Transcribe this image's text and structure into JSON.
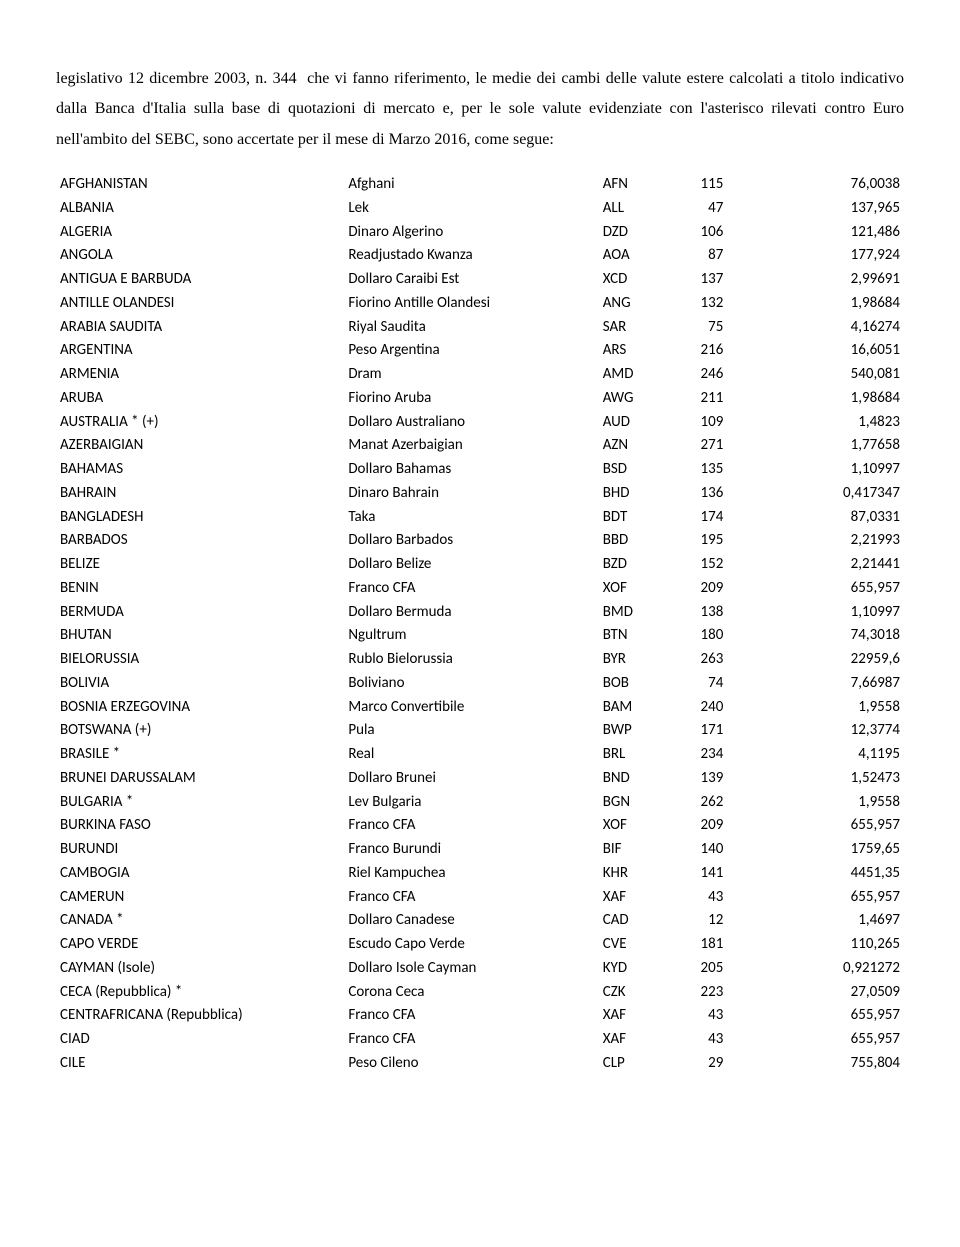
{
  "intro": {
    "line1_prefix": "legislativo 12 dicembre 2003, n. 344",
    "line1_rest": "che vi fanno riferimento, le medie dei cambi delle valute estere calcolati a titolo indicativo dalla Banca d'Italia sulla base di quotazioni di mercato e, per le sole valute evidenziate con l'asterisco rilevati contro Euro nell'ambito del SEBC, sono accertate per il mese di Marzo 2016,  come segue:"
  },
  "rows": [
    {
      "country": "AFGHANISTAN",
      "currency": "Afghani",
      "code": "AFN",
      "n1": "115",
      "n2": "76,0038"
    },
    {
      "country": "ALBANIA",
      "currency": "Lek",
      "code": "ALL",
      "n1": "47",
      "n2": "137,965"
    },
    {
      "country": "ALGERIA",
      "currency": "Dinaro Algerino",
      "code": "DZD",
      "n1": "106",
      "n2": "121,486"
    },
    {
      "country": "ANGOLA",
      "currency": "Readjustado Kwanza",
      "code": "AOA",
      "n1": "87",
      "n2": "177,924"
    },
    {
      "country": "ANTIGUA E BARBUDA",
      "currency": "Dollaro Caraibi Est",
      "code": "XCD",
      "n1": "137",
      "n2": "2,99691"
    },
    {
      "country": "ANTILLE OLANDESI",
      "currency": "Fiorino Antille Olandesi",
      "code": "ANG",
      "n1": "132",
      "n2": "1,98684"
    },
    {
      "country": "ARABIA SAUDITA",
      "currency": "Riyal Saudita",
      "code": "SAR",
      "n1": "75",
      "n2": "4,16274"
    },
    {
      "country": "ARGENTINA",
      "currency": "Peso Argentina",
      "code": "ARS",
      "n1": "216",
      "n2": "16,6051"
    },
    {
      "country": "ARMENIA",
      "currency": "Dram",
      "code": "AMD",
      "n1": "246",
      "n2": "540,081"
    },
    {
      "country": "ARUBA",
      "currency": "Fiorino Aruba",
      "code": "AWG",
      "n1": "211",
      "n2": "1,98684"
    },
    {
      "country": "AUSTRALIA * (+)",
      "currency": "Dollaro Australiano",
      "code": "AUD",
      "n1": "109",
      "n2": "1,4823"
    },
    {
      "country": "AZERBAIGIAN",
      "currency": "Manat Azerbaigian",
      "code": "AZN",
      "n1": "271",
      "n2": "1,77658"
    },
    {
      "country": "BAHAMAS",
      "currency": "Dollaro Bahamas",
      "code": "BSD",
      "n1": "135",
      "n2": "1,10997"
    },
    {
      "country": "BAHRAIN",
      "currency": "Dinaro Bahrain",
      "code": "BHD",
      "n1": "136",
      "n2": "0,417347"
    },
    {
      "country": "BANGLADESH",
      "currency": "Taka",
      "code": "BDT",
      "n1": "174",
      "n2": "87,0331"
    },
    {
      "country": "BARBADOS",
      "currency": "Dollaro Barbados",
      "code": "BBD",
      "n1": "195",
      "n2": "2,21993"
    },
    {
      "country": "BELIZE",
      "currency": "Dollaro Belize",
      "code": "BZD",
      "n1": "152",
      "n2": "2,21441"
    },
    {
      "country": "BENIN",
      "currency": "Franco CFA",
      "code": "XOF",
      "n1": "209",
      "n2": "655,957"
    },
    {
      "country": "BERMUDA",
      "currency": "Dollaro Bermuda",
      "code": "BMD",
      "n1": "138",
      "n2": "1,10997"
    },
    {
      "country": "BHUTAN",
      "currency": "Ngultrum",
      "code": "BTN",
      "n1": "180",
      "n2": "74,3018"
    },
    {
      "country": "BIELORUSSIA",
      "currency": "Rublo Bielorussia",
      "code": "BYR",
      "n1": "263",
      "n2": "22959,6"
    },
    {
      "country": "BOLIVIA",
      "currency": "Boliviano",
      "code": "BOB",
      "n1": "74",
      "n2": "7,66987"
    },
    {
      "country": "BOSNIA ERZEGOVINA",
      "currency": "Marco Convertibile",
      "code": "BAM",
      "n1": "240",
      "n2": "1,9558"
    },
    {
      "country": "BOTSWANA (+)",
      "currency": "Pula",
      "code": "BWP",
      "n1": "171",
      "n2": "12,3774"
    },
    {
      "country": "BRASILE *",
      "currency": "Real",
      "code": "BRL",
      "n1": "234",
      "n2": "4,1195"
    },
    {
      "country": "BRUNEI DARUSSALAM",
      "currency": "Dollaro Brunei",
      "code": "BND",
      "n1": "139",
      "n2": "1,52473"
    },
    {
      "country": "BULGARIA *",
      "currency": "Lev Bulgaria",
      "code": "BGN",
      "n1": "262",
      "n2": "1,9558"
    },
    {
      "country": "BURKINA FASO",
      "currency": "Franco CFA",
      "code": "XOF",
      "n1": "209",
      "n2": "655,957"
    },
    {
      "country": "BURUNDI",
      "currency": "Franco Burundi",
      "code": "BIF",
      "n1": "140",
      "n2": "1759,65"
    },
    {
      "country": "CAMBOGIA",
      "currency": "Riel Kampuchea",
      "code": "KHR",
      "n1": "141",
      "n2": "4451,35"
    },
    {
      "country": "CAMERUN",
      "currency": "Franco CFA",
      "code": "XAF",
      "n1": "43",
      "n2": "655,957"
    },
    {
      "country": "CANADA *",
      "currency": "Dollaro Canadese",
      "code": "CAD",
      "n1": "12",
      "n2": "1,4697"
    },
    {
      "country": "CAPO VERDE",
      "currency": "Escudo Capo Verde",
      "code": "CVE",
      "n1": "181",
      "n2": "110,265"
    },
    {
      "country": "CAYMAN (Isole)",
      "currency": "Dollaro Isole Cayman",
      "code": "KYD",
      "n1": "205",
      "n2": "0,921272"
    },
    {
      "country": "CECA (Repubblica) *",
      "currency": "Corona Ceca",
      "code": "CZK",
      "n1": "223",
      "n2": "27,0509"
    },
    {
      "country": "CENTRAFRICANA (Repubblica)",
      "currency": "Franco CFA",
      "code": "XAF",
      "n1": "43",
      "n2": "655,957"
    },
    {
      "country": "CIAD",
      "currency": "Franco CFA",
      "code": "XAF",
      "n1": "43",
      "n2": "655,957"
    },
    {
      "country": "CILE",
      "currency": "Peso Cileno",
      "code": "CLP",
      "n1": "29",
      "n2": "755,804"
    }
  ]
}
